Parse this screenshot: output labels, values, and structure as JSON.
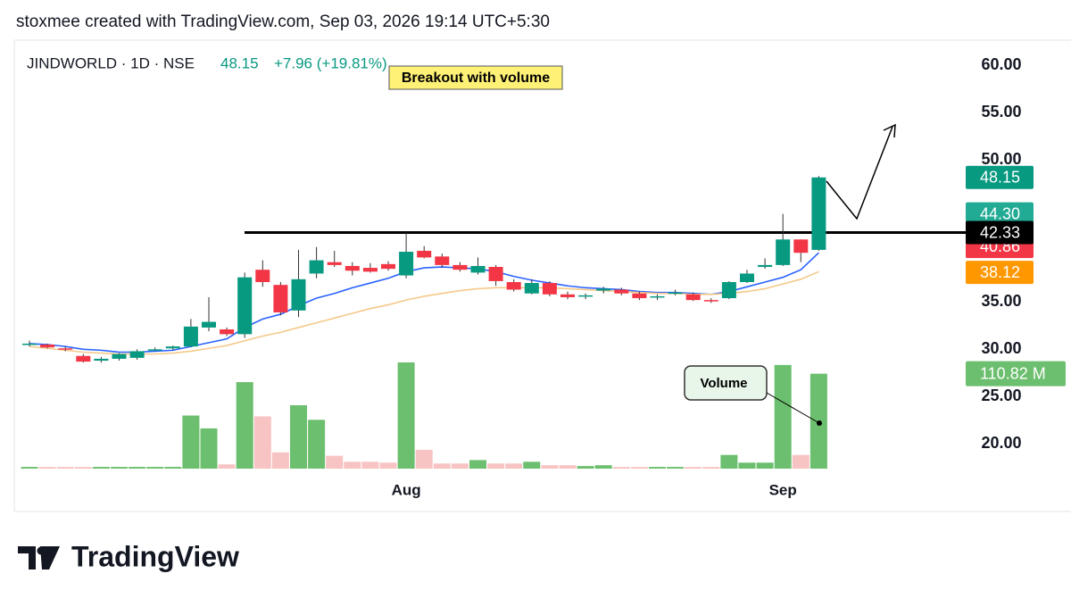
{
  "header": "stoxmee created with TradingView.com, Sep 03, 2026 19:14 UTC+5:30",
  "logo": "TradingView",
  "chart_data": {
    "type": "candlestick",
    "symbol": "JINDWORLD · 1D · NSE",
    "last": "48.15",
    "change": "+7.96 (+19.81%)",
    "categories": [
      null,
      null,
      null,
      null,
      null,
      null,
      null,
      null,
      null,
      null,
      null,
      null,
      null,
      null,
      null,
      null,
      null,
      null,
      null,
      null,
      null,
      "Aug",
      null,
      null,
      null,
      null,
      null,
      null,
      null,
      null,
      null,
      null,
      null,
      null,
      null,
      null,
      null,
      null,
      null,
      null,
      null,
      null,
      "Sep",
      null,
      null
    ],
    "open": [
      30.5,
      30.5,
      30.1,
      29.3,
      28.8,
      29.0,
      29.1,
      29.9,
      30.1,
      30.3,
      32.3,
      32.1,
      31.6,
      38.4,
      36.8,
      34.1,
      38.0,
      39.2,
      38.8,
      38.6,
      39.0,
      37.8,
      40.4,
      39.8,
      38.9,
      38.1,
      38.7,
      37.1,
      35.9,
      37.0,
      35.8,
      35.6,
      36.2,
      36.3,
      35.9,
      35.5,
      35.9,
      35.8,
      35.2,
      35.4,
      37.1,
      38.7,
      38.9,
      41.6,
      40.5
    ],
    "high": [
      30.9,
      30.6,
      30.3,
      29.5,
      29.2,
      29.6,
      30.0,
      30.2,
      30.4,
      33.2,
      35.5,
      32.3,
      38.1,
      39.4,
      37.1,
      40.5,
      40.8,
      40.4,
      39.2,
      39.1,
      39.3,
      42.3,
      40.9,
      40.1,
      39.2,
      39.7,
      38.9,
      37.4,
      37.4,
      37.2,
      36.1,
      35.9,
      36.6,
      36.5,
      36.1,
      35.8,
      36.3,
      36.0,
      35.4,
      37.2,
      38.4,
      39.6,
      44.3,
      41.6,
      48.3
    ],
    "low": [
      30.3,
      30.1,
      29.8,
      28.6,
      28.6,
      28.8,
      28.9,
      29.8,
      29.9,
      30.2,
      31.9,
      31.4,
      31.2,
      36.6,
      33.6,
      33.4,
      37.5,
      38.7,
      37.8,
      38.1,
      38.3,
      37.5,
      39.6,
      38.6,
      38.2,
      37.9,
      36.7,
      36.1,
      35.8,
      35.6,
      35.3,
      35.3,
      35.9,
      35.7,
      35.2,
      35.2,
      35.7,
      35.1,
      34.9,
      35.3,
      37.0,
      38.5,
      38.8,
      39.2,
      40.4
    ],
    "close": [
      30.6,
      30.2,
      30.0,
      28.7,
      29.0,
      29.5,
      29.8,
      30.0,
      30.3,
      32.4,
      32.9,
      31.6,
      37.6,
      37.1,
      33.9,
      37.4,
      39.4,
      38.9,
      38.3,
      38.2,
      38.5,
      40.3,
      39.7,
      38.9,
      38.4,
      38.8,
      37.2,
      36.3,
      37.0,
      35.8,
      35.5,
      35.7,
      36.4,
      35.9,
      35.4,
      35.6,
      36.0,
      35.2,
      35.1,
      37.1,
      38.0,
      38.9,
      41.6,
      40.19,
      48.15
    ],
    "up_color": "#089981",
    "down_color": "#f23645",
    "volume": [
      2,
      2,
      2,
      2,
      2,
      2,
      2,
      2,
      2,
      62,
      47,
      5,
      101,
      61,
      19,
      74,
      57,
      15,
      8,
      8,
      7,
      124,
      22,
      6,
      6,
      10,
      6,
      6,
      8,
      4,
      4,
      3,
      4,
      2,
      2,
      2,
      2,
      2,
      2,
      16,
      7,
      7,
      121,
      16,
      110.82
    ],
    "volume_up_color": "#6cbf6e",
    "volume_down_color": "#f7c3c3",
    "volume_label": {
      "value": 110.82,
      "label": "110.82 M"
    },
    "series": [
      {
        "color": "#2962ff",
        "values": [
          30.6,
          30.5,
          30.3,
          30.0,
          29.9,
          29.7,
          29.7,
          29.8,
          29.9,
          30.3,
          30.7,
          31.1,
          32.3,
          33.2,
          33.7,
          34.6,
          35.4,
          35.9,
          36.5,
          37.0,
          37.5,
          38.2,
          38.6,
          38.7,
          38.6,
          38.5,
          38.2,
          37.7,
          37.3,
          37.0,
          36.7,
          36.5,
          36.4,
          36.3,
          36.1,
          36.0,
          36.0,
          35.9,
          35.8,
          36.1,
          36.6,
          37.1,
          37.6,
          38.4,
          40.2
        ]
      },
      {
        "color": "#f5c98a",
        "values": [
          30.3,
          30.1,
          29.9,
          29.7,
          29.6,
          29.5,
          29.5,
          29.5,
          29.6,
          29.8,
          30.1,
          30.4,
          30.9,
          31.4,
          31.8,
          32.3,
          32.8,
          33.3,
          33.8,
          34.3,
          34.7,
          35.2,
          35.6,
          35.9,
          36.2,
          36.4,
          36.5,
          36.5,
          36.5,
          36.5,
          36.4,
          36.3,
          36.2,
          36.1,
          36.0,
          35.9,
          35.9,
          35.8,
          35.8,
          35.9,
          36.1,
          36.4,
          36.9,
          37.4,
          38.2
        ]
      }
    ],
    "price_labels": [
      {
        "value": 48.15,
        "label": "48.15",
        "color": "#089981"
      },
      {
        "value": 44.3,
        "label": "44.30",
        "color": "#22ab94"
      },
      {
        "value": 40.86,
        "label": "40.86",
        "color": "#f23645"
      },
      {
        "value": 38.12,
        "label": "38.12",
        "color": "#ff9800"
      },
      {
        "value": 42.33,
        "label": "42.33",
        "color": "#000000"
      }
    ],
    "ylim": [
      17.4,
      61.7
    ],
    "yticks": [
      {
        "value": 20,
        "label": "20.00"
      },
      {
        "value": 25,
        "label": "25.00"
      },
      {
        "value": 30,
        "label": "30.00"
      },
      {
        "value": 35,
        "label": "35.00"
      },
      {
        "value": 50,
        "label": "50.00"
      },
      {
        "value": 55,
        "label": "55.00"
      },
      {
        "value": 60,
        "label": "60.00"
      }
    ],
    "annotations": [
      "Breakout with volume",
      "Volume"
    ]
  }
}
